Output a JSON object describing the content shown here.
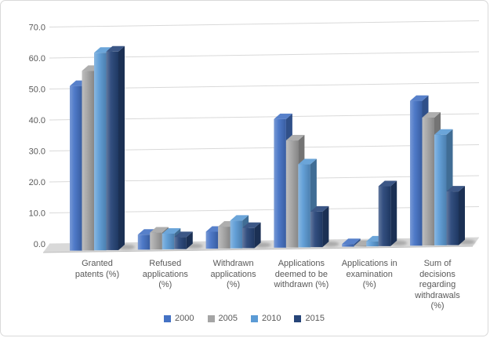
{
  "chart": {
    "background": "#ffffff",
    "border_color": "#d9d9d9",
    "grid_color": "#d9d9d9",
    "floor_color": "#d9d9d9",
    "text_color": "#595959"
  },
  "chart_data": {
    "type": "bar",
    "subtype": "3d-clustered-column",
    "title": "",
    "xlabel": "",
    "ylabel": "",
    "ylim": [
      0,
      70
    ],
    "ytick_step": 10,
    "ytick_labels": [
      "0.0",
      "10.0",
      "20.0",
      "30.0",
      "40.0",
      "50.0",
      "60.0",
      "70.0"
    ],
    "grid": true,
    "legend_position": "bottom",
    "categories": [
      "Granted patents (%)",
      "Refused applications (%)",
      "Withdrawn applications (%)",
      "Applications deemed to be withdrawn (%)",
      "Applications in examination (%)",
      "Sum of decisions regarding withdrawals (%)"
    ],
    "categories_display": [
      [
        "Granted",
        "patents (%)"
      ],
      [
        "Refused",
        "applications",
        "(%)"
      ],
      [
        "Withdrawn",
        "applications",
        "(%)"
      ],
      [
        "Applications",
        "deemed to be",
        "withdrawn (%)"
      ],
      [
        "Applications in",
        "examination",
        "(%)"
      ],
      [
        "Sum of",
        "decisions",
        "regarding",
        "withdrawals",
        "(%)"
      ]
    ],
    "series": [
      {
        "name": "2000",
        "color": "#4472C4",
        "values": [
          50.6,
          4.6,
          5.2,
          39.5,
          0.8,
          44.5
        ]
      },
      {
        "name": "2005",
        "color": "#A5A5A5",
        "values": [
          55.2,
          5.2,
          6.7,
          32.9,
          0.2,
          39.3
        ]
      },
      {
        "name": "2010",
        "color": "#5B9BD5",
        "values": [
          60.7,
          4.8,
          8.5,
          25.5,
          1.5,
          34.0
        ]
      },
      {
        "name": "2015",
        "color": "#264478",
        "values": [
          61.0,
          3.7,
          6.2,
          10.9,
          18.4,
          16.5
        ]
      }
    ]
  }
}
